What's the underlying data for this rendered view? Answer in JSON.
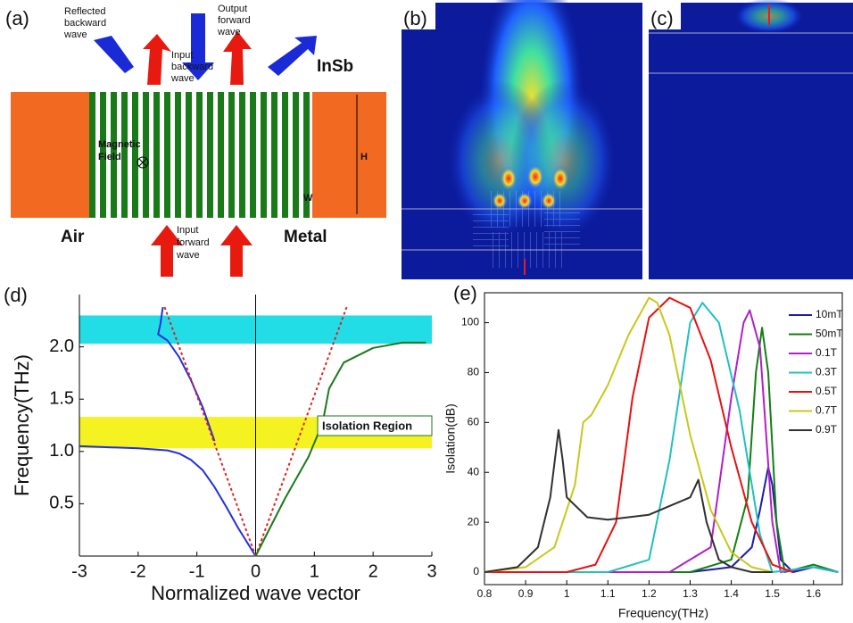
{
  "diagram": {
    "panel_a": "(a)",
    "panel_b": "(b)",
    "panel_c": "(c)",
    "reflected": [
      "Reflected",
      "backward",
      "wave"
    ],
    "input_backward": [
      "Input",
      "backward",
      "wave"
    ],
    "output_forward": [
      "Output",
      "forward",
      "wave"
    ],
    "input_forward": [
      "Input",
      "forward",
      "wave"
    ],
    "magnetic": [
      "Magnetic",
      "Field"
    ],
    "insb": "InSb",
    "air": "Air",
    "metal": "Metal",
    "h": "H",
    "w": "W"
  },
  "chart_data": [
    {
      "type": "line",
      "panel_label": "(d)",
      "xlabel": "Normalized wave vector",
      "ylabel": "Frequency(THz)",
      "xlim": [
        -3,
        3
      ],
      "xticks": [
        -3,
        -2,
        -1,
        0,
        1,
        2,
        3
      ],
      "ylim": [
        0,
        2.5
      ],
      "yticks": [
        0.5,
        {
          "value": 1,
          "label": "1.0"
        },
        1.5,
        {
          "value": 2,
          "label": "2.0"
        }
      ],
      "bands": [
        {
          "from": 2.03,
          "to": 2.3,
          "color": "#22dde6"
        },
        {
          "from": 1.03,
          "to": 1.33,
          "color": "#f5f222"
        }
      ],
      "annotation": "Isolation Region",
      "series": [
        {
          "color": "#2030e0",
          "dash": false,
          "x": [
            -3,
            -2.5,
            -2,
            -1.5,
            -1.3,
            -1.1,
            -0.9,
            -0.7,
            -0.5,
            -0.3,
            0
          ],
          "values": [
            1.05,
            1.04,
            1.03,
            1.01,
            0.98,
            0.92,
            0.82,
            0.66,
            0.47,
            0.27,
            0
          ]
        },
        {
          "color": "#2030e0",
          "dash": false,
          "x": [
            -1.58,
            -1.62,
            -1.66,
            -1.5,
            -1.3,
            -1.1,
            -0.9,
            -0.7
          ],
          "values": [
            2.38,
            2.22,
            2.12,
            2.06,
            1.9,
            1.68,
            1.42,
            1.1
          ]
        },
        {
          "color": "#e02020",
          "dash": true,
          "x": [
            -1.55,
            0
          ],
          "values": [
            2.38,
            0
          ]
        },
        {
          "color": "#e02020",
          "dash": true,
          "x": [
            0,
            1.55
          ],
          "values": [
            0,
            2.38
          ]
        },
        {
          "color": "#1a7a1a",
          "dash": false,
          "x": [
            0,
            0.5,
            0.9,
            1.05,
            1.15,
            1.25,
            1.5,
            2,
            2.5,
            2.9
          ],
          "values": [
            0,
            0.55,
            0.95,
            1.15,
            1.3,
            1.6,
            1.85,
            1.99,
            2.04,
            2.04
          ]
        }
      ]
    },
    {
      "type": "line",
      "panel_label": "(e)",
      "xlabel": "Frequency(THz)",
      "ylabel": "Isolation(dB)",
      "xlim": [
        0.8,
        1.67
      ],
      "xticks": [
        0.8,
        0.9,
        1,
        1.1,
        1.2,
        1.3,
        1.4,
        1.5,
        1.6
      ],
      "ylim": [
        -5,
        112
      ],
      "yticks": [
        0,
        20,
        40,
        60,
        80,
        100
      ],
      "series": [
        {
          "name": "10mT",
          "color": "#1c1ca8",
          "x": [
            0.8,
            1.3,
            1.4,
            1.45,
            1.47,
            1.49,
            1.5,
            1.52,
            1.55,
            1.6,
            1.66
          ],
          "values": [
            0,
            0,
            2,
            10,
            25,
            42,
            35,
            5,
            0,
            2,
            0
          ]
        },
        {
          "name": "50mT",
          "color": "#118011",
          "x": [
            0.8,
            1.3,
            1.4,
            1.44,
            1.46,
            1.475,
            1.49,
            1.51,
            1.53,
            1.6,
            1.66
          ],
          "values": [
            0,
            0,
            5,
            30,
            80,
            98,
            80,
            20,
            0,
            3,
            0
          ]
        },
        {
          "name": "0.1T",
          "color": "#b020c8",
          "x": [
            0.8,
            1.25,
            1.35,
            1.4,
            1.43,
            1.445,
            1.47,
            1.5,
            1.52,
            1.6,
            1.66
          ],
          "values": [
            0,
            0,
            10,
            70,
            100,
            105,
            90,
            20,
            0,
            2,
            0
          ]
        },
        {
          "name": "0.3T",
          "color": "#20c0c0",
          "x": [
            0.8,
            1.1,
            1.2,
            1.25,
            1.3,
            1.33,
            1.37,
            1.42,
            1.47,
            1.5,
            1.6,
            1.66
          ],
          "values": [
            0,
            0,
            5,
            45,
            100,
            108,
            100,
            65,
            15,
            0,
            2,
            0
          ]
        },
        {
          "name": "0.5T",
          "color": "#e81010",
          "x": [
            0.8,
            1,
            1.07,
            1.12,
            1.16,
            1.2,
            1.25,
            1.3,
            1.35,
            1.4,
            1.45,
            1.5,
            1.55
          ],
          "values": [
            0,
            0,
            3,
            20,
            70,
            102,
            110,
            106,
            85,
            50,
            20,
            3,
            0
          ]
        },
        {
          "name": "0.7T",
          "color": "#c8c81a",
          "x": [
            0.8,
            0.9,
            0.97,
            1.02,
            1.04,
            1.06,
            1.1,
            1.15,
            1.2,
            1.22,
            1.25,
            1.3,
            1.35,
            1.4,
            1.45,
            1.5
          ],
          "values": [
            0,
            2,
            10,
            35,
            60,
            63,
            75,
            95,
            110,
            108,
            95,
            55,
            25,
            8,
            2,
            0
          ]
        },
        {
          "name": "0.9T",
          "color": "#303030",
          "x": [
            0.8,
            0.88,
            0.93,
            0.96,
            0.98,
            0.99,
            1,
            1.05,
            1.1,
            1.2,
            1.3,
            1.32,
            1.34,
            1.37,
            1.4,
            1.45,
            1.5
          ],
          "values": [
            0,
            2,
            10,
            30,
            57,
            45,
            30,
            22,
            21,
            23,
            30,
            37,
            20,
            5,
            2,
            0,
            0
          ]
        }
      ]
    }
  ]
}
